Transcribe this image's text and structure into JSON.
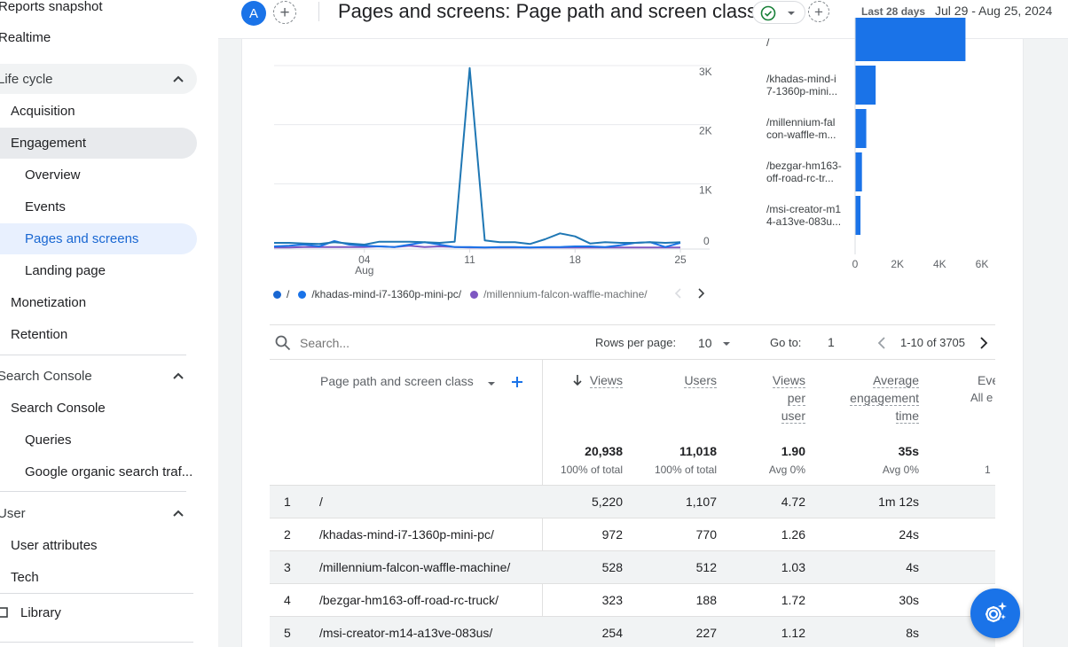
{
  "sidebar": {
    "reports_snapshot": "Reports snapshot",
    "realtime": "Realtime",
    "life_cycle": "Life cycle",
    "acquisition": "Acquisition",
    "engagement": "Engagement",
    "overview": "Overview",
    "events": "Events",
    "pages_and_screens": "Pages and screens",
    "landing_page": "Landing page",
    "monetization": "Monetization",
    "retention": "Retention",
    "search_console_section": "Search Console",
    "search_console": "Search Console",
    "queries": "Queries",
    "google_organic": "Google organic search traf...",
    "user_section": "User",
    "user_attributes": "User attributes",
    "tech": "Tech",
    "library": "Library"
  },
  "header": {
    "avatar_letter": "A",
    "title": "Pages and screens: Page path and screen class",
    "date_label": "Last 28 days",
    "date_range": "Jul 29 - Aug 25, 2024"
  },
  "colors": {
    "accent": "#1a73e8",
    "series_root": "#1967d2",
    "series_khadas": "#1a73e8",
    "series_millennium": "#7e57c2",
    "status_green": "#188038"
  },
  "chart_data": [
    {
      "type": "line",
      "x_tick_labels": [
        "04",
        "11",
        "18",
        "25"
      ],
      "x_month_label": "Aug",
      "y_tick_labels": [
        "3K",
        "2K",
        "1K",
        "0"
      ],
      "ylim": [
        0,
        3000
      ],
      "x": [
        "Jul 29",
        "Jul 30",
        "Jul 31",
        "Aug 1",
        "Aug 2",
        "Aug 3",
        "Aug 4",
        "Aug 5",
        "Aug 6",
        "Aug 7",
        "Aug 8",
        "Aug 9",
        "Aug 10",
        "Aug 11",
        "Aug 12",
        "Aug 13",
        "Aug 14",
        "Aug 15",
        "Aug 16",
        "Aug 17",
        "Aug 18",
        "Aug 19",
        "Aug 20",
        "Aug 21",
        "Aug 22",
        "Aug 23",
        "Aug 24",
        "Aug 25"
      ],
      "series": [
        {
          "name": "/",
          "values": [
            90,
            90,
            80,
            70,
            100,
            80,
            60,
            110,
            110,
            110,
            100,
            90,
            110,
            3050,
            130,
            100,
            100,
            70,
            150,
            250,
            200,
            80,
            100,
            90,
            90,
            100,
            90,
            100
          ]
        },
        {
          "name": "/khadas-mind-i7-1360p-mini-pc/",
          "values": [
            30,
            40,
            60,
            30,
            120,
            60,
            40,
            30,
            20,
            60,
            100,
            60,
            20,
            20,
            10,
            20,
            20,
            10,
            20,
            20,
            30,
            30,
            20,
            50,
            90,
            100,
            20,
            90
          ]
        },
        {
          "name": "/millennium-falcon-waffle-machine/",
          "values": [
            10,
            10,
            20,
            20,
            20,
            20,
            20,
            30,
            20,
            40,
            20,
            30,
            20,
            10,
            10,
            10,
            10,
            10,
            10,
            10,
            10,
            10,
            10,
            10,
            10,
            10,
            10,
            10
          ]
        }
      ],
      "legend": [
        "/",
        "/khadas-mind-i7-1360p-mini-pc/",
        "/millennium-falcon-waffle-machine/"
      ]
    },
    {
      "type": "bar",
      "orientation": "horizontal",
      "categories": [
        "/",
        "/khadas-mind-i7-1360p-mini-pc/",
        "/millennium-falcon-waffle-machine/",
        "/bezgar-hm163-off-road-rc-truck/",
        "/msi-creator-m14-a13ve-083us/"
      ],
      "category_labels": [
        [
          "/"
        ],
        [
          "/khadas-mind-i",
          "7-1360p-mini..."
        ],
        [
          "/millennium-fal",
          "con-waffle-m..."
        ],
        [
          "/bezgar-hm163-",
          "off-road-rc-tr..."
        ],
        [
          "/msi-creator-m1",
          "4-a13ve-083u..."
        ]
      ],
      "values": [
        5220,
        972,
        528,
        323,
        254
      ],
      "x_tick_labels": [
        "0",
        "2K",
        "4K",
        "6K"
      ],
      "xlim": [
        0,
        6000
      ]
    }
  ],
  "toolbar": {
    "search_placeholder": "Search...",
    "rows_per_page_label": "Rows per page:",
    "rows_per_page_value": "10",
    "goto_label": "Go to:",
    "goto_value": "1",
    "pagination": "1-10 of 3705"
  },
  "table": {
    "dimension_header": "Page path and screen class",
    "columns": [
      {
        "label_lines": [
          "Views"
        ],
        "total": "20,938",
        "sub": "100% of total"
      },
      {
        "label_lines": [
          "Users"
        ],
        "total": "11,018",
        "sub": "100% of total"
      },
      {
        "label_lines": [
          "Views",
          "per",
          "user"
        ],
        "total": "1.90",
        "sub": "Avg 0%"
      },
      {
        "label_lines": [
          "Average",
          "engagement",
          "time"
        ],
        "total": "35s",
        "sub": "Avg 0%"
      }
    ],
    "partial_column": {
      "label": "Eve",
      "sub": "All e",
      "total_sub": "1"
    },
    "rows": [
      {
        "index": "1",
        "path": "/",
        "views": "5,220",
        "users": "1,107",
        "vpu": "4.72",
        "aet": "1m 12s"
      },
      {
        "index": "2",
        "path": "/khadas-mind-i7-1360p-mini-pc/",
        "views": "972",
        "users": "770",
        "vpu": "1.26",
        "aet": "24s"
      },
      {
        "index": "3",
        "path": "/millennium-falcon-waffle-machine/",
        "views": "528",
        "users": "512",
        "vpu": "1.03",
        "aet": "4s"
      },
      {
        "index": "4",
        "path": "/bezgar-hm163-off-road-rc-truck/",
        "views": "323",
        "users": "188",
        "vpu": "1.72",
        "aet": "30s"
      },
      {
        "index": "5",
        "path": "/msi-creator-m14-a13ve-083us/",
        "views": "254",
        "users": "227",
        "vpu": "1.12",
        "aet": "8s"
      }
    ]
  }
}
